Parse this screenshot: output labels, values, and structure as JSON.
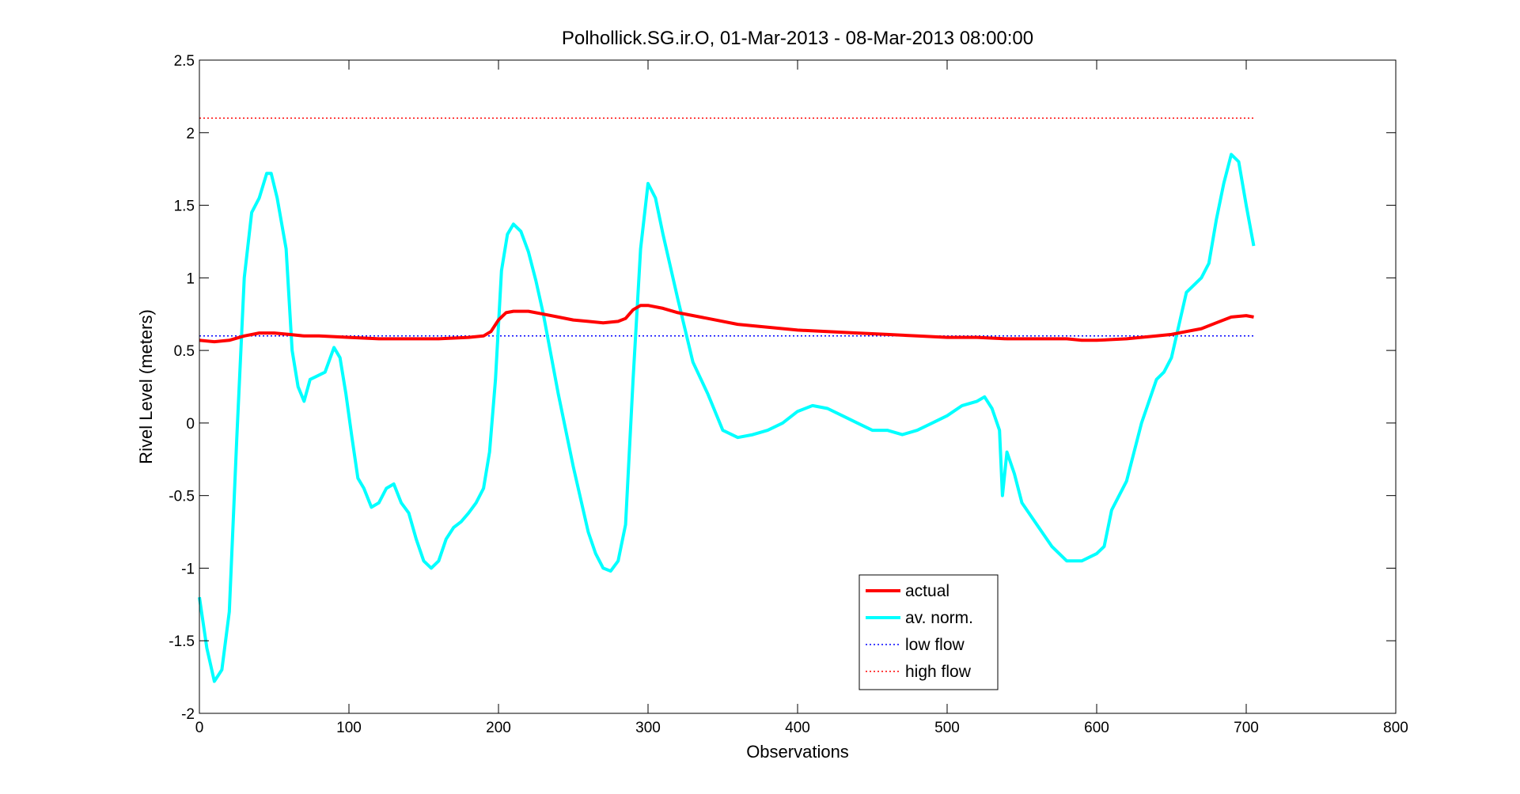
{
  "chart_data": {
    "type": "line",
    "title": "Polhollick.SG.ir.O, 01-Mar-2013 - 08-Mar-2013 08:00:00",
    "xlabel": "Observations",
    "ylabel": "Rivel Level (meters)",
    "xlim": [
      0,
      800
    ],
    "ylim": [
      -2,
      2.5
    ],
    "xticks": [
      0,
      100,
      200,
      300,
      400,
      500,
      600,
      700,
      800
    ],
    "xtick_labels": [
      "0",
      "100",
      "200",
      "300",
      "400",
      "500",
      "600",
      "700",
      "800"
    ],
    "yticks": [
      -2,
      -1.5,
      -1,
      -0.5,
      0,
      0.5,
      1,
      1.5,
      2,
      2.5
    ],
    "ytick_labels": [
      "-2",
      "-1.5",
      "-1",
      "-0.5",
      "0",
      "0.5",
      "1",
      "1.5",
      "2",
      "2.5"
    ],
    "grid": false,
    "legend_position": "bottom-center",
    "series": [
      {
        "name": "actual",
        "color": "#ff0000",
        "style": "solid",
        "width": "thick",
        "x": [
          0,
          10,
          20,
          30,
          40,
          50,
          60,
          70,
          80,
          100,
          120,
          140,
          160,
          180,
          190,
          195,
          200,
          205,
          210,
          220,
          230,
          240,
          250,
          260,
          270,
          280,
          285,
          290,
          295,
          300,
          310,
          320,
          340,
          360,
          380,
          400,
          420,
          440,
          460,
          480,
          500,
          520,
          540,
          560,
          580,
          590,
          600,
          620,
          640,
          650,
          660,
          670,
          680,
          690,
          700,
          705
        ],
        "y": [
          0.57,
          0.56,
          0.57,
          0.6,
          0.62,
          0.62,
          0.61,
          0.6,
          0.6,
          0.59,
          0.58,
          0.58,
          0.58,
          0.59,
          0.6,
          0.63,
          0.71,
          0.76,
          0.77,
          0.77,
          0.75,
          0.73,
          0.71,
          0.7,
          0.69,
          0.7,
          0.72,
          0.78,
          0.81,
          0.81,
          0.79,
          0.76,
          0.72,
          0.68,
          0.66,
          0.64,
          0.63,
          0.62,
          0.61,
          0.6,
          0.59,
          0.59,
          0.58,
          0.58,
          0.58,
          0.57,
          0.57,
          0.58,
          0.6,
          0.61,
          0.63,
          0.65,
          0.69,
          0.73,
          0.74,
          0.73
        ]
      },
      {
        "name": "av. norm.",
        "color": "#00ffff",
        "style": "solid",
        "width": "thick",
        "x": [
          0,
          5,
          10,
          15,
          20,
          25,
          30,
          35,
          40,
          45,
          48,
          52,
          58,
          62,
          66,
          70,
          74,
          78,
          84,
          90,
          94,
          98,
          102,
          106,
          110,
          115,
          120,
          125,
          130,
          135,
          140,
          145,
          150,
          155,
          160,
          165,
          170,
          175,
          180,
          185,
          190,
          194,
          198,
          202,
          206,
          210,
          215,
          220,
          225,
          230,
          240,
          250,
          260,
          265,
          270,
          275,
          280,
          285,
          290,
          295,
          300,
          305,
          310,
          320,
          330,
          340,
          350,
          360,
          370,
          380,
          390,
          400,
          410,
          420,
          430,
          440,
          450,
          460,
          470,
          480,
          490,
          500,
          510,
          520,
          525,
          530,
          535,
          537,
          540,
          545,
          550,
          560,
          570,
          580,
          590,
          600,
          605,
          610,
          620,
          630,
          640,
          645,
          650,
          660,
          670,
          675,
          680,
          685,
          690,
          695,
          700,
          705
        ],
        "y": [
          -1.2,
          -1.55,
          -1.78,
          -1.7,
          -1.3,
          -0.1,
          1.0,
          1.45,
          1.55,
          1.72,
          1.72,
          1.55,
          1.2,
          0.5,
          0.25,
          0.15,
          0.3,
          0.32,
          0.35,
          0.52,
          0.45,
          0.2,
          -0.1,
          -0.38,
          -0.45,
          -0.58,
          -0.55,
          -0.45,
          -0.42,
          -0.55,
          -0.62,
          -0.8,
          -0.95,
          -1.0,
          -0.95,
          -0.8,
          -0.72,
          -0.68,
          -0.62,
          -0.55,
          -0.45,
          -0.2,
          0.3,
          1.05,
          1.3,
          1.37,
          1.32,
          1.18,
          0.98,
          0.75,
          0.2,
          -0.3,
          -0.75,
          -0.9,
          -1.0,
          -1.02,
          -0.95,
          -0.7,
          0.3,
          1.2,
          1.65,
          1.55,
          1.3,
          0.85,
          0.42,
          0.2,
          -0.05,
          -0.1,
          -0.08,
          -0.05,
          0.0,
          0.08,
          0.12,
          0.1,
          0.05,
          0.0,
          -0.05,
          -0.05,
          -0.08,
          -0.05,
          0.0,
          0.05,
          0.12,
          0.15,
          0.18,
          0.1,
          -0.05,
          -0.5,
          -0.2,
          -0.35,
          -0.55,
          -0.7,
          -0.85,
          -0.95,
          -0.95,
          -0.9,
          -0.85,
          -0.6,
          -0.4,
          0.0,
          0.3,
          0.35,
          0.45,
          0.9,
          1.0,
          1.1,
          1.4,
          1.65,
          1.85,
          1.8,
          1.5,
          1.22
        ]
      },
      {
        "name": "low flow",
        "color": "#0000ff",
        "style": "dotted",
        "width": "thin",
        "x": [
          0,
          705
        ],
        "y": [
          0.6,
          0.6
        ]
      },
      {
        "name": "high flow",
        "color": "#ff0000",
        "style": "dotted",
        "width": "thin",
        "x": [
          0,
          705
        ],
        "y": [
          2.1,
          2.1
        ]
      }
    ]
  }
}
